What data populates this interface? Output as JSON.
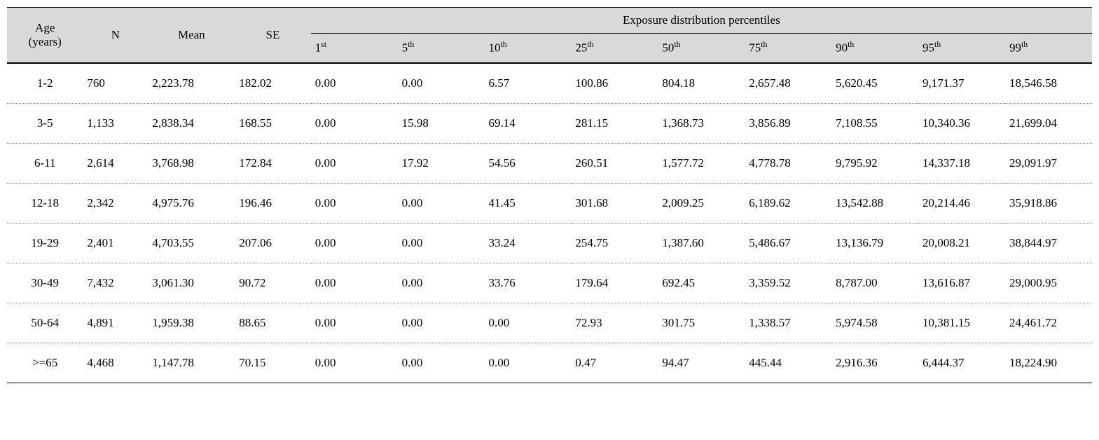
{
  "table": {
    "headers": {
      "age": "Age\n(years)",
      "n": "N",
      "mean": "Mean",
      "se": "SE",
      "group": "Exposure distribution percentiles",
      "p": [
        "1",
        "5",
        "10",
        "25",
        "50",
        "75",
        "90",
        "95",
        "99"
      ],
      "sup": [
        "st",
        "th",
        "th",
        "th",
        "th",
        "th",
        "th",
        "th",
        "th"
      ]
    },
    "rows": [
      {
        "age": "1-2",
        "n": "760",
        "mean": "2,223.78",
        "se": "182.02",
        "p": [
          "0.00",
          "0.00",
          "6.57",
          "100.86",
          "804.18",
          "2,657.48",
          "5,620.45",
          "9,171.37",
          "18,546.58"
        ]
      },
      {
        "age": "3-5",
        "n": "1,133",
        "mean": "2,838.34",
        "se": "168.55",
        "p": [
          "0.00",
          "15.98",
          "69.14",
          "281.15",
          "1,368.73",
          "3,856.89",
          "7,108.55",
          "10,340.36",
          "21,699.04"
        ]
      },
      {
        "age": "6-11",
        "n": "2,614",
        "mean": "3,768.98",
        "se": "172.84",
        "p": [
          "0.00",
          "17.92",
          "54.56",
          "260.51",
          "1,577.72",
          "4,778.78",
          "9,795.92",
          "14,337.18",
          "29,091.97"
        ]
      },
      {
        "age": "12-18",
        "n": "2,342",
        "mean": "4,975.76",
        "se": "196.46",
        "p": [
          "0.00",
          "0.00",
          "41.45",
          "301.68",
          "2,009.25",
          "6,189.62",
          "13,542.88",
          "20,214.46",
          "35,918.86"
        ]
      },
      {
        "age": "19-29",
        "n": "2,401",
        "mean": "4,703.55",
        "se": "207.06",
        "p": [
          "0.00",
          "0.00",
          "33.24",
          "254.75",
          "1,387.60",
          "5,486.67",
          "13,136.79",
          "20,008.21",
          "38,844.97"
        ]
      },
      {
        "age": "30-49",
        "n": "7,432",
        "mean": "3,061.30",
        "se": "90.72",
        "p": [
          "0.00",
          "0.00",
          "33.76",
          "179.64",
          "692.45",
          "3,359.52",
          "8,787.00",
          "13,616.87",
          "29,000.95"
        ]
      },
      {
        "age": "50-64",
        "n": "4,891",
        "mean": "1,959.38",
        "se": "88.65",
        "p": [
          "0.00",
          "0.00",
          "0.00",
          "72.93",
          "301.75",
          "1,338.57",
          "5,974.58",
          "10,381.15",
          "24,461.72"
        ]
      },
      {
        "age": ">=65",
        "n": "4,468",
        "mean": "1,147.78",
        "se": "70.15",
        "p": [
          "0.00",
          "0.00",
          "0.00",
          "0.47",
          "94.47",
          "445.44",
          "2,916.36",
          "6,444.37",
          "18,224.90"
        ]
      }
    ]
  }
}
